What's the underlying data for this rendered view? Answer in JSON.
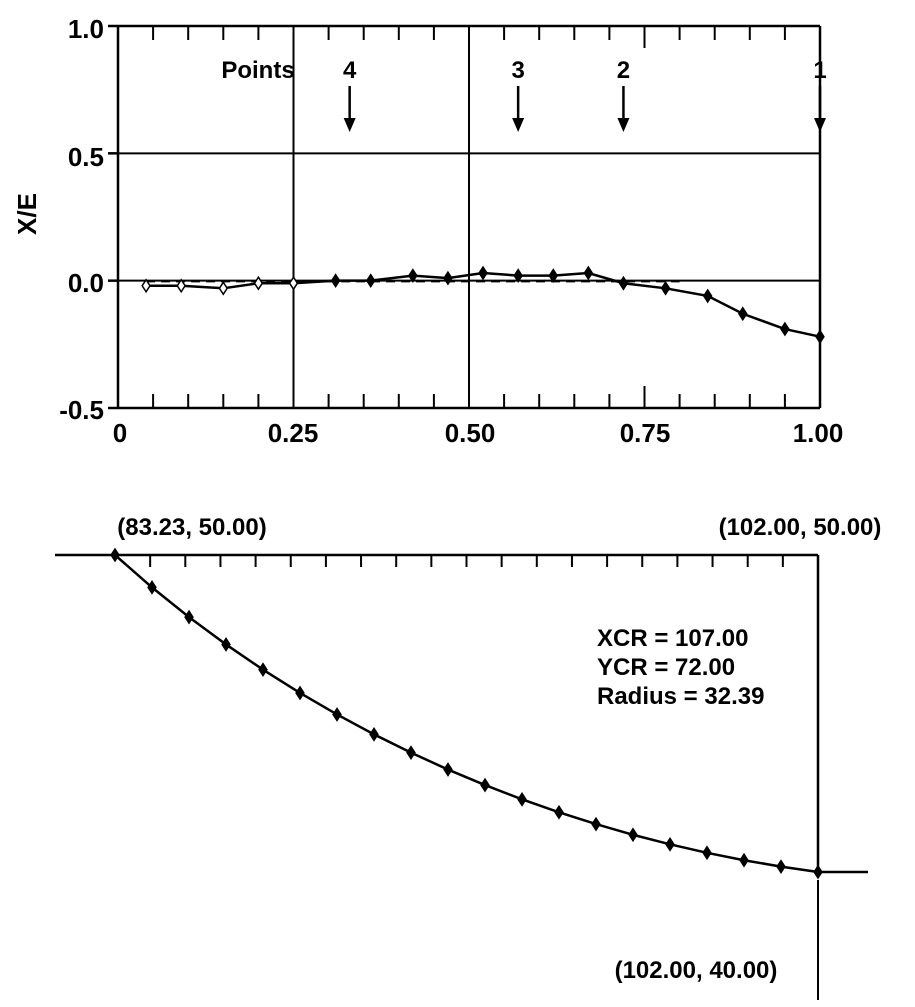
{
  "chart_data": [
    {
      "type": "line",
      "title": "",
      "xlabel": "",
      "ylabel": "X/E",
      "xlim": [
        0,
        1.0
      ],
      "ylim": [
        -0.5,
        1.0
      ],
      "x_tick_labels": [
        "0",
        "0.25",
        "0.50",
        "0.75",
        "1.00"
      ],
      "y_tick_labels": [
        "1.0",
        "0.5",
        "0.0",
        "-0.5"
      ],
      "grid": true,
      "annotation_title": "Points",
      "point_markers": [
        {
          "label": "4",
          "x": 0.33
        },
        {
          "label": "3",
          "x": 0.57
        },
        {
          "label": "2",
          "x": 0.72
        },
        {
          "label": "1",
          "x": 1.0
        }
      ],
      "series": [
        {
          "marker": "diamond",
          "x": [
            0.04,
            0.09,
            0.15,
            0.2,
            0.25,
            0.31,
            0.36,
            0.42,
            0.47,
            0.52,
            0.57,
            0.62,
            0.67,
            0.72,
            0.78,
            0.84,
            0.89,
            0.95,
            1.0
          ],
          "y": [
            -0.02,
            -0.02,
            -0.03,
            -0.01,
            -0.01,
            0.0,
            0.0,
            0.02,
            0.01,
            0.03,
            0.02,
            0.02,
            0.03,
            -0.01,
            -0.03,
            -0.06,
            -0.13,
            -0.19,
            -0.22
          ]
        }
      ]
    },
    {
      "type": "line",
      "title": "",
      "xlabel": "",
      "ylabel": "",
      "xlim": [
        83.23,
        102.0
      ],
      "ylim": [
        40.0,
        50.0
      ],
      "grid": false,
      "circle": {
        "xcr": 107.0,
        "ycr": 72.0,
        "radius": 32.39
      },
      "annotations": [
        "XCR = 107.00",
        "YCR = 72.00",
        "Radius = 32.39"
      ],
      "corner_labels": {
        "start": "(83.23, 50.00)",
        "top_right": "(102.00, 50.00)",
        "end": "(102.00, 40.00)"
      },
      "n_points": 20
    }
  ]
}
